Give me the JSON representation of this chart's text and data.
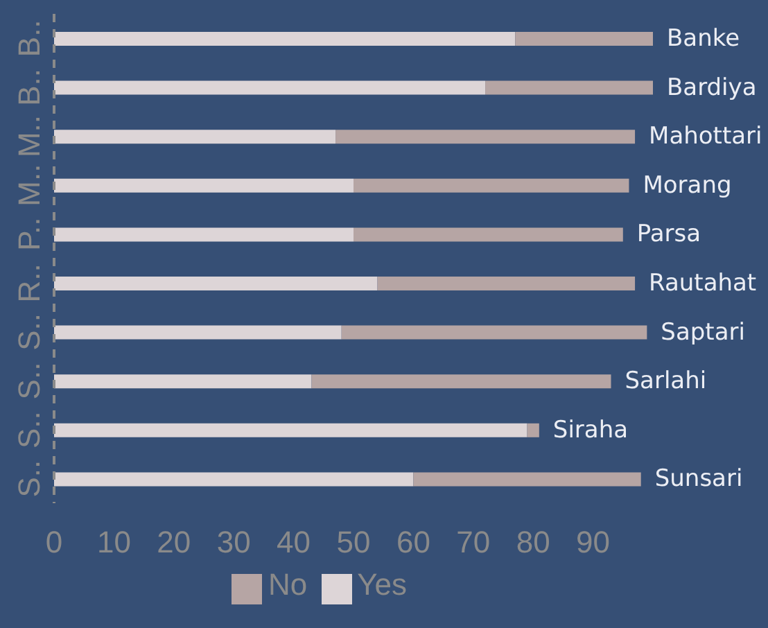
{
  "chart_data": {
    "type": "bar",
    "orientation": "horizontal",
    "stacked": true,
    "categories": [
      "Banke",
      "Bardiya",
      "Mahottari",
      "Morang",
      "Parsa",
      "Rautahat",
      "Saptari",
      "Sarlahi",
      "Siraha",
      "Sunsari"
    ],
    "series": [
      {
        "name": "Yes",
        "color": "#ddd5d7",
        "values": [
          77,
          72,
          47,
          50,
          50,
          54,
          48,
          43,
          79,
          60
        ]
      },
      {
        "name": "No",
        "color": "#b6a5a4",
        "values": [
          23,
          28,
          50,
          46,
          45,
          43,
          51,
          50,
          2,
          38
        ]
      }
    ],
    "xlim": [
      0,
      100
    ],
    "xticks": [
      0,
      10,
      20,
      30,
      40,
      50,
      60,
      70,
      80,
      90
    ],
    "annotations": [
      "B..",
      "B..",
      "M..",
      "M..",
      "P..",
      "R..",
      "S..",
      "S..",
      "S..",
      "S.."
    ],
    "grid": false,
    "legend": "bottom"
  }
}
